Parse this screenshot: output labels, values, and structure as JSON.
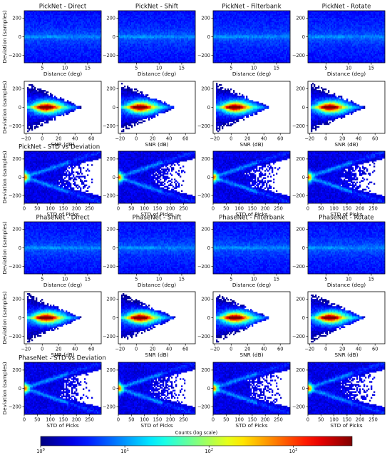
{
  "chart_data": {
    "type": "heatmap",
    "colormap": "jet",
    "colorbar": {
      "label": "Counts (log scale)",
      "scale": "log",
      "ticks": [
        "10^0",
        "10^1",
        "10^2",
        "10^3"
      ],
      "range": [
        1,
        5000
      ]
    },
    "rows": [
      {
        "kind": "distance",
        "titles": [
          "PickNet - Direct",
          "PickNet - Shift",
          "PickNet - Filterbank",
          "PickNet - Rotate"
        ],
        "xlabel": "Distance (deg)",
        "ylabel": "Deviation (samples)",
        "xlim": [
          1,
          18
        ],
        "ylim": [
          -280,
          280
        ],
        "xticks": [
          5,
          10,
          15
        ],
        "yticks": [
          -200,
          0,
          200
        ]
      },
      {
        "kind": "snr",
        "titles": [
          "",
          "",
          "",
          ""
        ],
        "xlabel": "SNR (dB)",
        "ylabel": "Deviation (samples)",
        "xlim": [
          -22,
          72
        ],
        "ylim": [
          -280,
          280
        ],
        "xticks": [
          -20,
          0,
          20,
          40,
          60
        ],
        "yticks": [
          -200,
          0,
          200
        ]
      },
      {
        "kind": "std",
        "titles": [
          "PickNet - STD vs Deviation",
          "",
          "",
          ""
        ],
        "xlabel": "STD of Picks",
        "ylabel": "Deviation (samples)",
        "xlim": [
          0,
          295
        ],
        "ylim": [
          -285,
          285
        ],
        "xticks": [
          0,
          50,
          100,
          150,
          200,
          250
        ],
        "yticks": [
          -200,
          0,
          200
        ]
      },
      {
        "kind": "distance",
        "titles": [
          "PhaseNet - Direct",
          "PhaseNet - Shift",
          "PhaseNet - Filterbank",
          "PhaseNet - Rotate"
        ],
        "xlabel": "Distance (deg)",
        "ylabel": "Deviation (samples)",
        "xlim": [
          1,
          18
        ],
        "ylim": [
          -280,
          280
        ],
        "xticks": [
          5,
          10,
          15
        ],
        "yticks": [
          -200,
          0,
          200
        ]
      },
      {
        "kind": "snr",
        "titles": [
          "",
          "",
          "",
          ""
        ],
        "xlabel": "SNR (dB)",
        "ylabel": "Deviation (samples)",
        "xlim": [
          -22,
          72
        ],
        "ylim": [
          -280,
          280
        ],
        "xticks": [
          -20,
          0,
          20,
          40,
          60
        ],
        "yticks": [
          -200,
          0,
          200
        ]
      },
      {
        "kind": "std",
        "titles": [
          "PhaseNet - STD vs Deviation",
          "",
          "",
          ""
        ],
        "xlabel": "STD of Picks",
        "ylabel": "Deviation (samples)",
        "xlim": [
          0,
          295
        ],
        "ylim": [
          -285,
          285
        ],
        "xticks": [
          0,
          50,
          100,
          150,
          200,
          250
        ],
        "yticks": [
          -200,
          0,
          200
        ]
      }
    ]
  }
}
